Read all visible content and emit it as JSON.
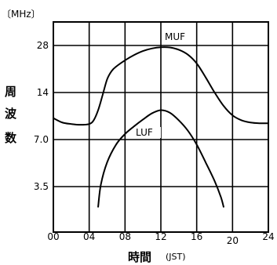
{
  "chart_data": {
    "type": "line",
    "unit_label": "〔MHz〕",
    "ylabel": "周波数",
    "xlabel_main": "時間",
    "xlabel_unit": "(JST)",
    "x_ticks": [
      "00",
      "04",
      "08",
      "12",
      "16",
      "20",
      "24"
    ],
    "y_ticks": [
      "28",
      "14",
      "7.0",
      "3.5"
    ],
    "y_scale": "log",
    "xlim": [
      0,
      24
    ],
    "grid": true,
    "series": [
      {
        "name": "MUF",
        "x": [
          0,
          1,
          2,
          3,
          4,
          4.5,
          5,
          5.5,
          6,
          6.5,
          7,
          8,
          9,
          10,
          11,
          12,
          13,
          14,
          15,
          16,
          17,
          18,
          19,
          20,
          21,
          22,
          23,
          24
        ],
        "y": [
          9.6,
          9.0,
          8.8,
          8.7,
          8.8,
          9.3,
          10.8,
          13.5,
          17.0,
          19.2,
          20.5,
          22.5,
          24.3,
          25.8,
          26.8,
          27.3,
          27.2,
          26.3,
          24.5,
          21.5,
          17.5,
          14.0,
          11.5,
          10.0,
          9.3,
          9.0,
          8.9,
          8.9
        ]
      },
      {
        "name": "LUF",
        "x": [
          5,
          5.3,
          6,
          7,
          8,
          9,
          10,
          11,
          12,
          13,
          14,
          15,
          16,
          17,
          18,
          18.7,
          19
        ],
        "y": [
          2.6,
          3.6,
          5.0,
          6.5,
          7.6,
          8.5,
          9.4,
          10.3,
          10.8,
          10.4,
          9.3,
          8.0,
          6.5,
          5.0,
          3.8,
          3.0,
          2.6
        ]
      }
    ]
  }
}
